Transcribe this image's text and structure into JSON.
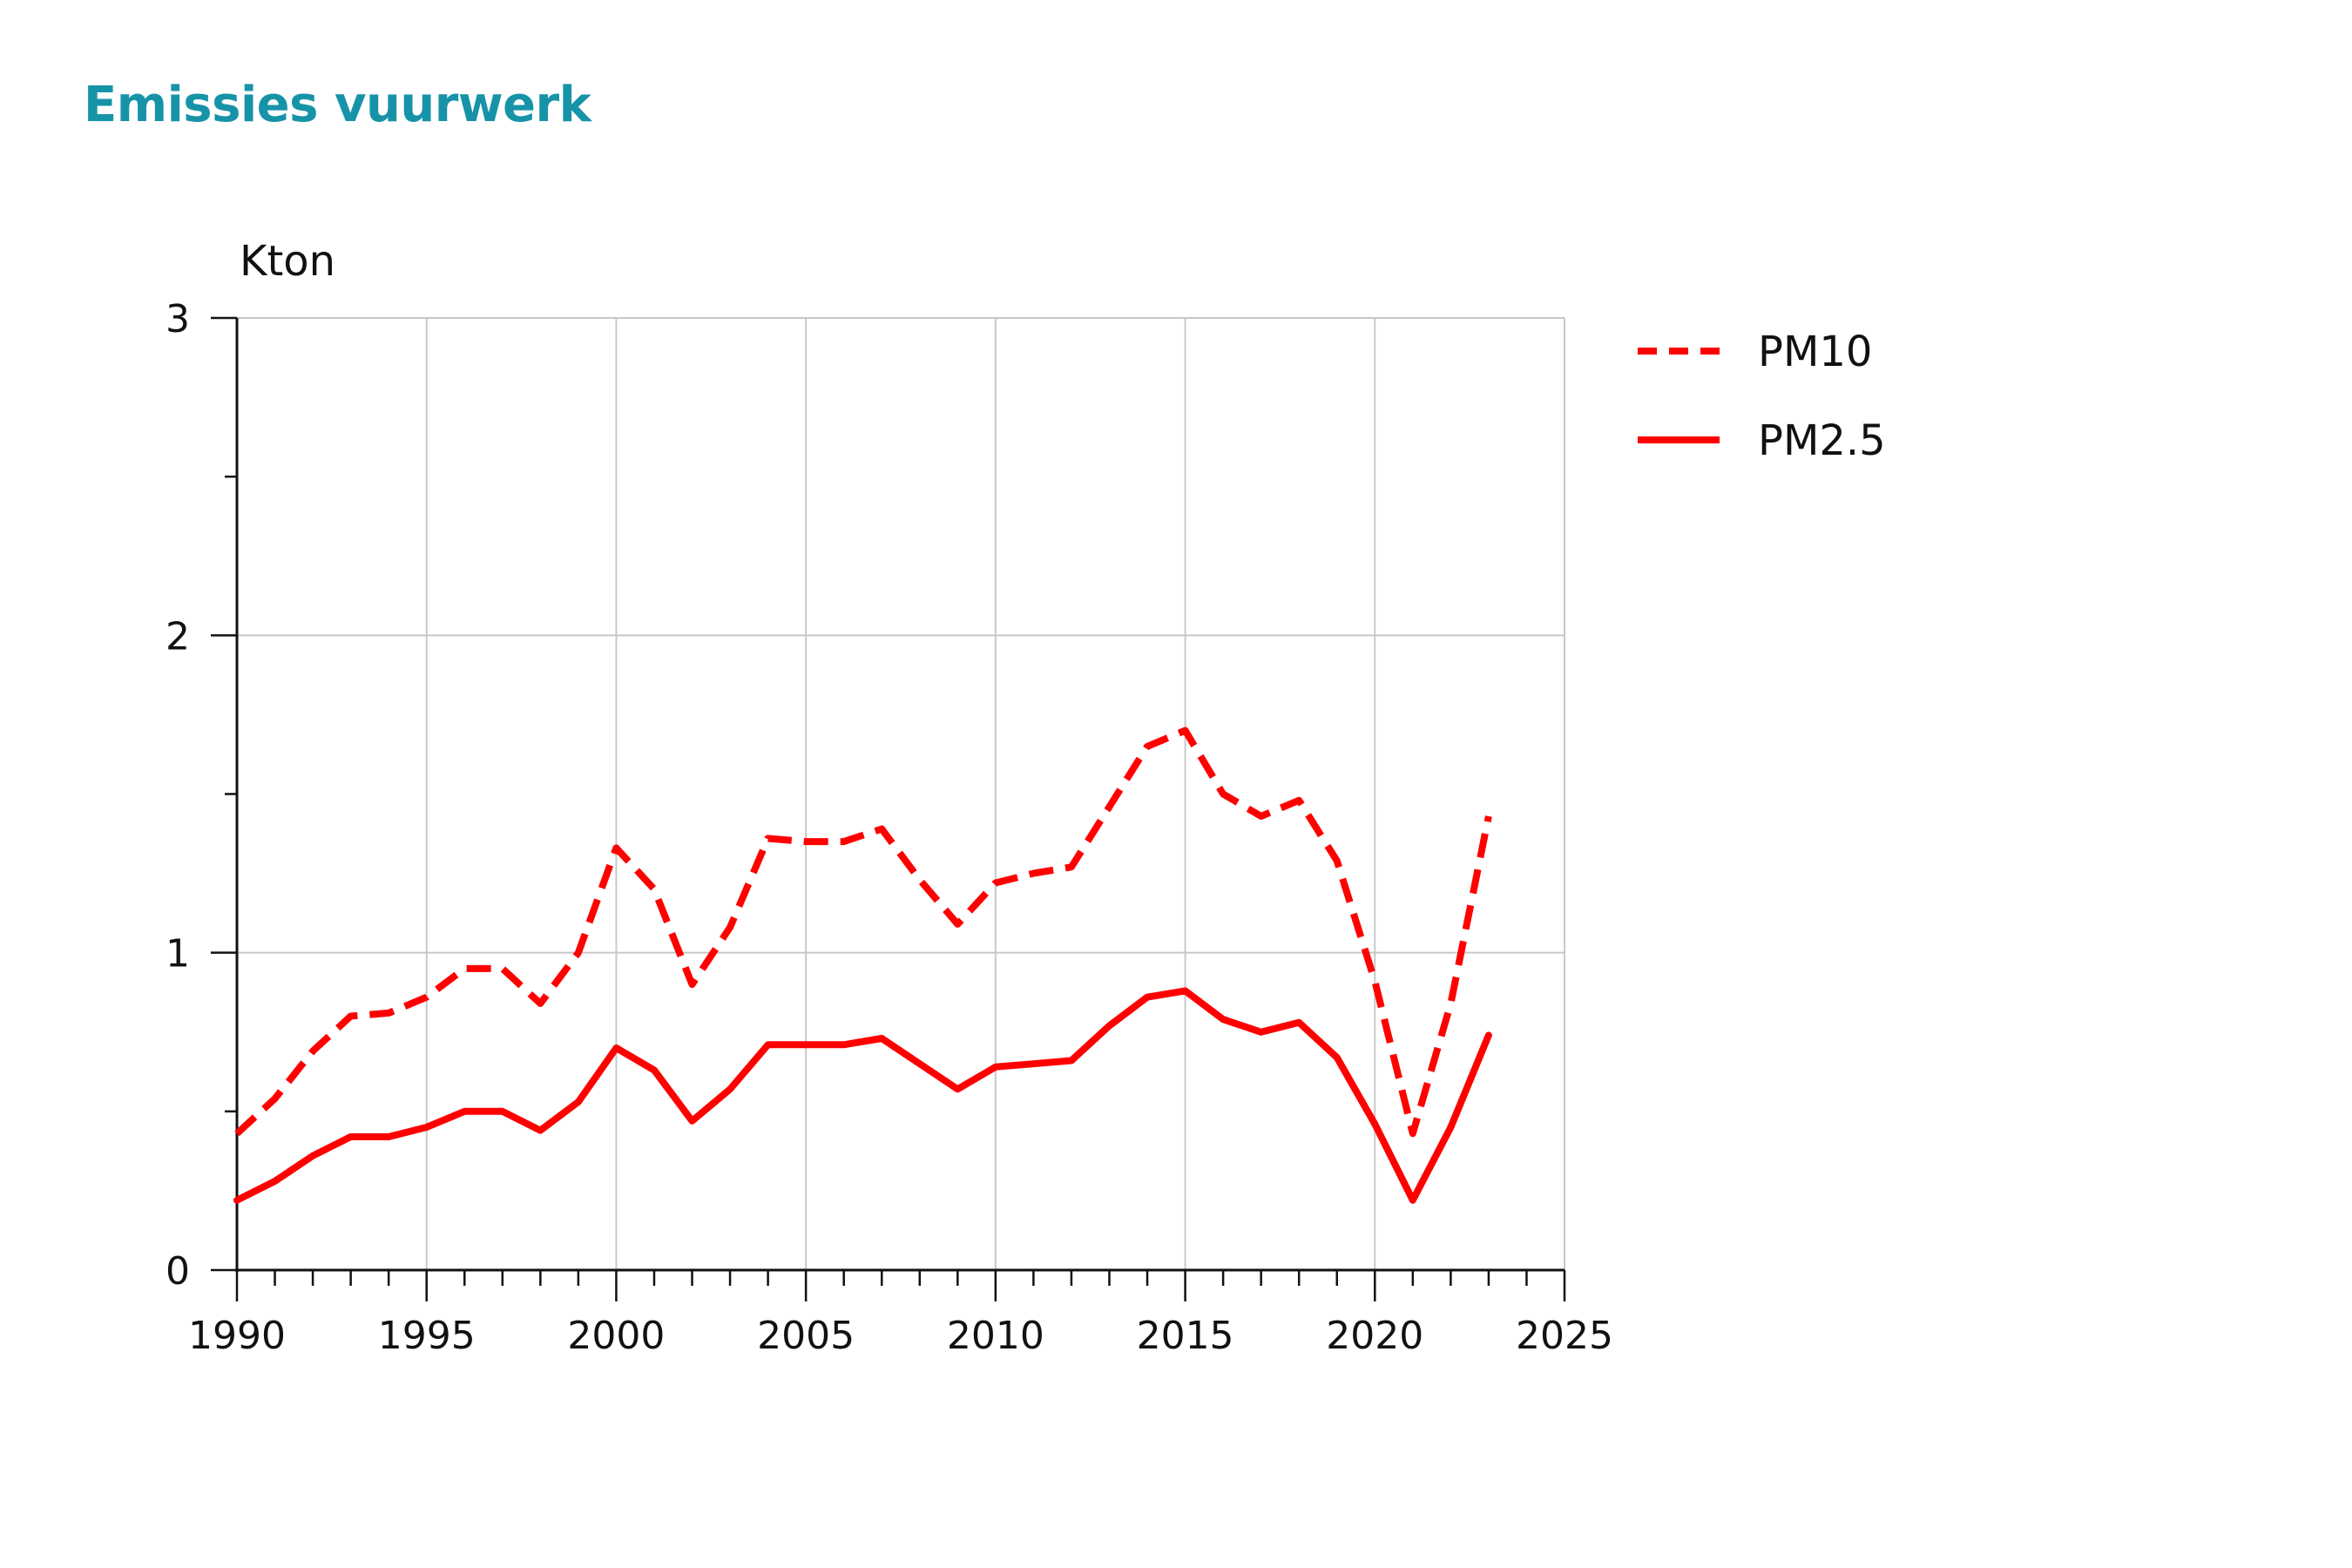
{
  "title": "Emissies vuurwerk",
  "colors": {
    "title": "#1793a8",
    "series": "#ff0000",
    "grid": "#c8c8c8",
    "axis": "#111111"
  },
  "chart_data": {
    "type": "line",
    "title": "Emissies vuurwerk",
    "xlabel": "",
    "ylabel": "Kton",
    "xlim": [
      1990,
      2025
    ],
    "ylim": [
      0,
      3
    ],
    "xticks": [
      1990,
      1995,
      2000,
      2005,
      2010,
      2015,
      2020,
      2025
    ],
    "yticks": [
      0,
      1,
      2,
      3
    ],
    "grid": true,
    "legend_position": "right",
    "x": [
      1990,
      1991,
      1992,
      1993,
      1994,
      1995,
      1996,
      1997,
      1998,
      1999,
      2000,
      2001,
      2002,
      2003,
      2004,
      2005,
      2006,
      2007,
      2008,
      2009,
      2010,
      2011,
      2012,
      2013,
      2014,
      2015,
      2016,
      2017,
      2018,
      2019,
      2020,
      2021,
      2022,
      2023
    ],
    "series": [
      {
        "name": "PM10",
        "style": "dashed",
        "color": "#ff0000",
        "values": [
          0.43,
          0.54,
          0.69,
          0.8,
          0.81,
          0.86,
          0.95,
          0.95,
          0.84,
          1.0,
          1.33,
          1.2,
          0.9,
          1.08,
          1.36,
          1.35,
          1.35,
          1.39,
          1.23,
          1.09,
          1.22,
          1.25,
          1.27,
          1.46,
          1.65,
          1.7,
          1.5,
          1.43,
          1.48,
          1.29,
          0.91,
          0.43,
          0.84,
          1.43
        ]
      },
      {
        "name": "PM2.5",
        "style": "solid",
        "color": "#ff0000",
        "values": [
          0.22,
          0.28,
          0.36,
          0.42,
          0.42,
          0.45,
          0.5,
          0.5,
          0.44,
          0.53,
          0.7,
          0.63,
          0.47,
          0.57,
          0.71,
          0.71,
          0.71,
          0.73,
          0.65,
          0.57,
          0.64,
          0.65,
          0.66,
          0.77,
          0.86,
          0.88,
          0.79,
          0.75,
          0.78,
          0.67,
          0.46,
          0.22,
          0.45,
          0.74
        ]
      }
    ]
  }
}
